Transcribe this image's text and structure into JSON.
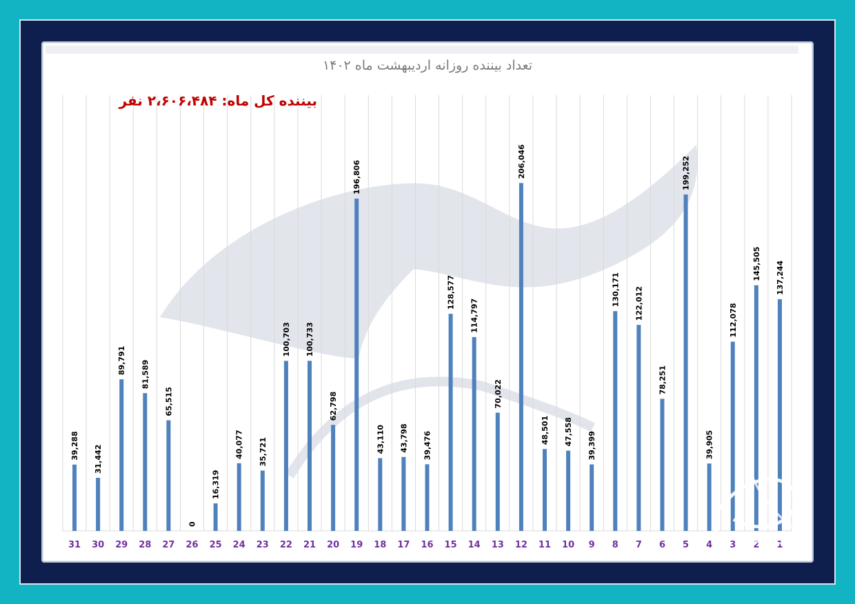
{
  "chart_data": {
    "type": "bar",
    "title": "تعداد بیننده روزانه اردیبهشت ماه ۱۴۰۲",
    "subtitle": "بیننده کل ماه: ۲،۶۰۶،۴۸۴ نفر",
    "categories": [
      "31",
      "30",
      "29",
      "28",
      "27",
      "26",
      "25",
      "24",
      "23",
      "22",
      "21",
      "20",
      "19",
      "18",
      "17",
      "16",
      "15",
      "14",
      "13",
      "12",
      "11",
      "10",
      "9",
      "8",
      "7",
      "6",
      "5",
      "4",
      "3",
      "2",
      "1"
    ],
    "values": [
      39288,
      31442,
      89791,
      81589,
      65515,
      0,
      16319,
      40077,
      35721,
      100703,
      100733,
      62798,
      196806,
      43110,
      43798,
      39476,
      128577,
      114797,
      70022,
      206046,
      48501,
      47558,
      39399,
      130171,
      122012,
      78251,
      199252,
      39905,
      112078,
      145505,
      137244
    ],
    "data_labels": [
      "39,288",
      "31,442",
      "89,791",
      "81,589",
      "65,515",
      "0",
      "16,319",
      "40,077",
      "35,721",
      "100,703",
      "100,733",
      "62,798",
      "196,806",
      "43,110",
      "43,798",
      "39,476",
      "128,577",
      "114,797",
      "70,022",
      "206,046",
      "48,501",
      "47,558",
      "39,399",
      "130,171",
      "122,012",
      "78,251",
      "199,252",
      "39,905",
      "112,078",
      "145,505",
      "137,244"
    ],
    "ylim": [
      0,
      250000
    ],
    "grid": "vertical",
    "bar_color": "#4f81bd",
    "label_color": "#000000",
    "category_color": "#7030a0",
    "title_color": "#7b7b7b",
    "subtitle_color": "#c00000"
  },
  "colors": {
    "background": "#12b3c2",
    "frame": "#0f1f4d",
    "panel": "#ffffff"
  }
}
